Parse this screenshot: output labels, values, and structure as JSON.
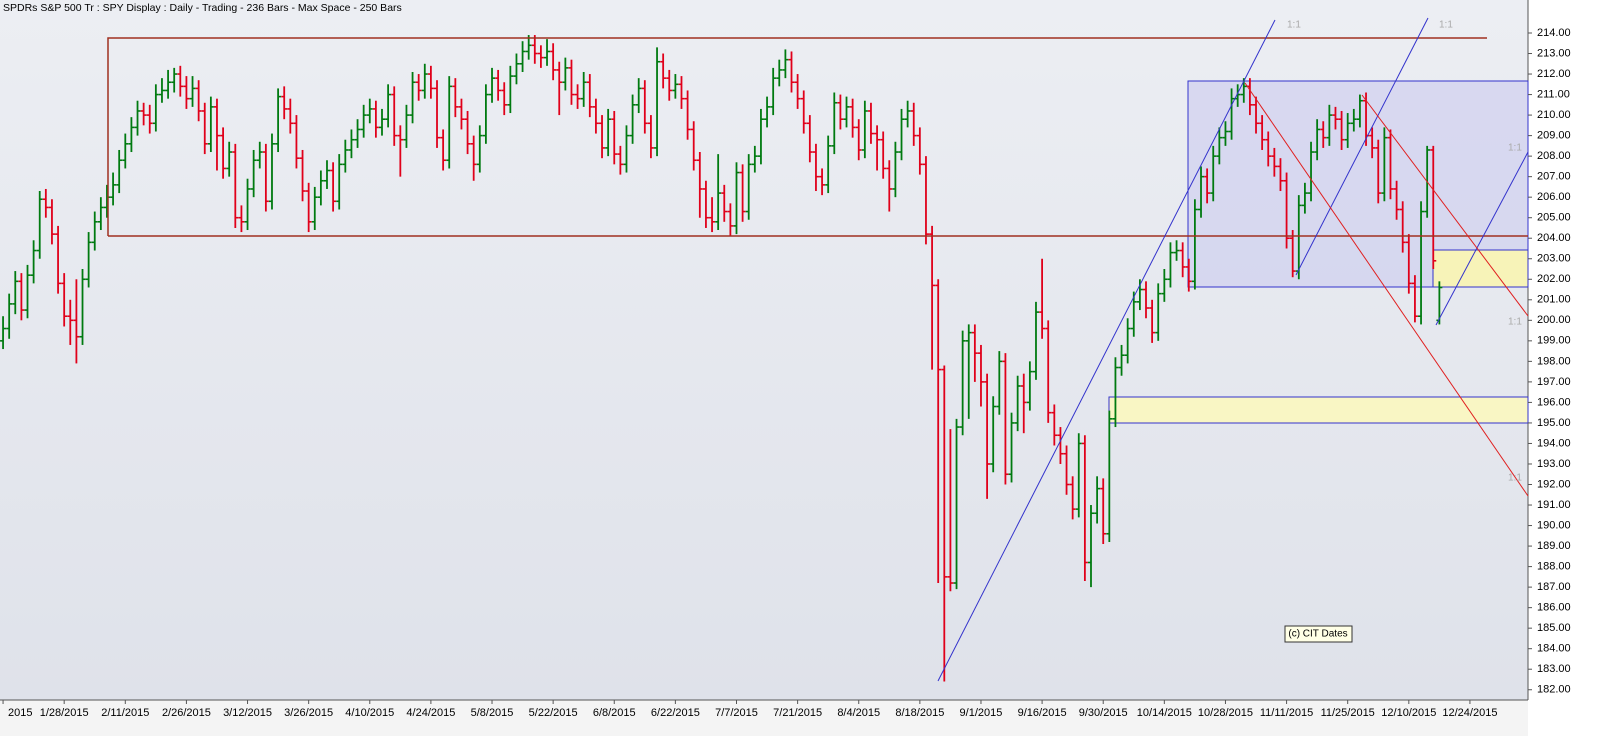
{
  "chart_data": {
    "type": "ohlc",
    "title": "SPDRs S&P 500 Tr : SPY Display :  Daily  - Trading - 236 Bars -  Max Space - 250 Bars",
    "up_color": "#007a10",
    "down_color": "#e0001a",
    "xlim": [
      -0.5,
      249.5
    ],
    "xticks": [
      {
        "value": 0,
        "label": "2015"
      },
      {
        "value": 10,
        "label": "1/28/2015"
      },
      {
        "value": 20,
        "label": "2/11/2015"
      },
      {
        "value": 30,
        "label": "2/26/2015"
      },
      {
        "value": 40,
        "label": "3/12/2015"
      },
      {
        "value": 50,
        "label": "3/26/2015"
      },
      {
        "value": 60,
        "label": "4/10/2015"
      },
      {
        "value": 70,
        "label": "4/24/2015"
      },
      {
        "value": 80,
        "label": "5/8/2015"
      },
      {
        "value": 90,
        "label": "5/22/2015"
      },
      {
        "value": 100,
        "label": "6/8/2015"
      },
      {
        "value": 110,
        "label": "6/22/2015"
      },
      {
        "value": 120,
        "label": "7/7/2015"
      },
      {
        "value": 130,
        "label": "7/21/2015"
      },
      {
        "value": 140,
        "label": "8/4/2015"
      },
      {
        "value": 150,
        "label": "8/18/2015"
      },
      {
        "value": 160,
        "label": "9/1/2015"
      },
      {
        "value": 170,
        "label": "9/16/2015"
      },
      {
        "value": 180,
        "label": "9/30/2015"
      },
      {
        "value": 190,
        "label": "10/14/2015"
      },
      {
        "value": 200,
        "label": "10/28/2015"
      },
      {
        "value": 210,
        "label": "11/11/2015"
      },
      {
        "value": 220,
        "label": "11/25/2015"
      },
      {
        "value": 230,
        "label": "12/10/2015"
      },
      {
        "value": 240,
        "label": "12/24/2015"
      }
    ],
    "ylim": [
      181.5,
      214.75
    ],
    "yticks": [
      {
        "value": 182,
        "label": "182.00"
      },
      {
        "value": 183,
        "label": "183.00"
      },
      {
        "value": 184,
        "label": "184.00"
      },
      {
        "value": 185,
        "label": "185.00"
      },
      {
        "value": 186,
        "label": "186.00"
      },
      {
        "value": 187,
        "label": "187.00"
      },
      {
        "value": 188,
        "label": "188.00"
      },
      {
        "value": 189,
        "label": "189.00"
      },
      {
        "value": 190,
        "label": "190.00"
      },
      {
        "value": 191,
        "label": "191.00"
      },
      {
        "value": 192,
        "label": "192.00"
      },
      {
        "value": 193,
        "label": "193.00"
      },
      {
        "value": 194,
        "label": "194.00"
      },
      {
        "value": 195,
        "label": "195.00"
      },
      {
        "value": 196,
        "label": "196.00"
      },
      {
        "value": 197,
        "label": "197.00"
      },
      {
        "value": 198,
        "label": "198.00"
      },
      {
        "value": 199,
        "label": "199.00"
      },
      {
        "value": 200,
        "label": "200.00"
      },
      {
        "value": 201,
        "label": "201.00"
      },
      {
        "value": 202,
        "label": "202.00"
      },
      {
        "value": 203,
        "label": "203.00"
      },
      {
        "value": 204,
        "label": "204.00"
      },
      {
        "value": 205,
        "label": "205.00"
      },
      {
        "value": 206,
        "label": "206.00"
      },
      {
        "value": 207,
        "label": "207.00"
      },
      {
        "value": 208,
        "label": "208.00"
      },
      {
        "value": 209,
        "label": "209.00"
      },
      {
        "value": 210,
        "label": "210.00"
      },
      {
        "value": 211,
        "label": "211.00"
      },
      {
        "value": 212,
        "label": "212.00"
      },
      {
        "value": 213,
        "label": "213.00"
      },
      {
        "value": 214,
        "label": "214.00"
      }
    ],
    "open": [
      199.0,
      199.6,
      200.8,
      201.9,
      200.5,
      202.2,
      203.4,
      205.9,
      205.5,
      204.2,
      201.8,
      200.2,
      200.0,
      199.2,
      202.0,
      203.8,
      204.8,
      205.5,
      206.0,
      206.6,
      207.8,
      208.6,
      209.4,
      210.2,
      210.0,
      209.6,
      211.0,
      211.2,
      211.6,
      212.0,
      211.4,
      210.8,
      211.3,
      210.2,
      208.6,
      210.4,
      209.0,
      207.4,
      208.2,
      205.0,
      204.8,
      206.4,
      207.8,
      208.2,
      205.8,
      208.6,
      210.9,
      210.3,
      209.6,
      207.9,
      206.3,
      204.8,
      206.0,
      206.8,
      207.3,
      205.8,
      207.6,
      208.3,
      208.8,
      209.3,
      210.0,
      210.3,
      209.4,
      209.8,
      211.0,
      209.0,
      208.8,
      210.0,
      211.6,
      211.2,
      212.0,
      211.3,
      208.9,
      207.8,
      211.4,
      210.4,
      209.8,
      208.6,
      207.6,
      209.0,
      211.0,
      211.8,
      211.2,
      210.5,
      211.9,
      212.5,
      213.1,
      213.4,
      213.0,
      212.8,
      213.1,
      212.2,
      211.6,
      212.3,
      211.0,
      210.8,
      211.6,
      210.4,
      209.6,
      208.4,
      209.8,
      208.1,
      207.6,
      209.0,
      210.5,
      211.3,
      209.6,
      208.4,
      212.6,
      211.8,
      211.2,
      211.5,
      210.8,
      209.3,
      207.8,
      206.4,
      205.0,
      204.8,
      206.2,
      205.3,
      204.6,
      207.2,
      205.3,
      207.6,
      208.0,
      209.8,
      210.4,
      211.8,
      212.2,
      212.7,
      211.6,
      210.8,
      209.6,
      208.2,
      207.0,
      206.6,
      208.5,
      210.6,
      209.8,
      210.4,
      209.4,
      208.3,
      210.2,
      209.1,
      208.8,
      207.4,
      206.4,
      208.2,
      209.8,
      210.2,
      209.0,
      207.6,
      204.2,
      201.7,
      197.6,
      187.5,
      187.2,
      194.8,
      199.0,
      199.4,
      198.4,
      197.0,
      193.0,
      195.8,
      198.0,
      192.5,
      195.0,
      196.8,
      196.0,
      197.5,
      200.4,
      199.6,
      195.5,
      194.4,
      193.5,
      192.0,
      190.8,
      194.0,
      188.2,
      190.6,
      191.8,
      189.6,
      195.2,
      197.7,
      198.3,
      199.6,
      200.9,
      201.5,
      200.6,
      199.4,
      201.3,
      202.0,
      203.3,
      203.4,
      202.6,
      201.9,
      205.4,
      207.0,
      206.2,
      208.0,
      208.9,
      209.2,
      210.8,
      211.0,
      211.4,
      210.5,
      209.6,
      208.8,
      208.0,
      207.5,
      206.8,
      204.0,
      202.4,
      205.6,
      206.2,
      208.2,
      209.3,
      208.9,
      210.0,
      209.8,
      208.8,
      209.6,
      209.8,
      210.7,
      209.0,
      208.4,
      206.2,
      208.9,
      206.4,
      205.4,
      203.8,
      201.8,
      200.2,
      205.3,
      208.3,
      200.0
    ],
    "high": [
      200.2,
      201.3,
      202.4,
      202.3,
      202.7,
      203.9,
      206.3,
      206.4,
      205.9,
      204.6,
      202.3,
      201.0,
      202.0,
      202.5,
      204.3,
      205.3,
      206.0,
      206.6,
      207.2,
      208.3,
      209.1,
      209.9,
      210.7,
      210.6,
      210.5,
      211.5,
      211.8,
      212.2,
      212.3,
      212.4,
      211.9,
      211.9,
      211.7,
      210.6,
      210.9,
      210.8,
      209.4,
      208.7,
      208.6,
      205.6,
      206.9,
      208.3,
      208.7,
      208.6,
      209.1,
      211.3,
      211.4,
      210.8,
      210.0,
      208.3,
      206.7,
      206.5,
      207.3,
      207.8,
      207.7,
      208.1,
      208.8,
      209.3,
      209.8,
      210.5,
      210.8,
      210.7,
      210.3,
      211.5,
      211.4,
      209.5,
      210.5,
      212.1,
      212.0,
      212.5,
      212.4,
      211.7,
      209.3,
      211.9,
      211.8,
      210.8,
      210.2,
      209.0,
      209.5,
      211.5,
      212.3,
      212.2,
      211.6,
      212.4,
      213.0,
      213.6,
      213.9,
      213.9,
      213.4,
      213.7,
      213.5,
      212.6,
      212.8,
      212.7,
      211.5,
      212.1,
      212.0,
      210.8,
      210.0,
      210.3,
      210.2,
      208.5,
      209.5,
      211.0,
      211.8,
      211.7,
      210.0,
      213.3,
      213.0,
      212.2,
      212.0,
      211.9,
      211.2,
      209.7,
      208.2,
      206.8,
      206.0,
      208.1,
      206.6,
      205.7,
      207.7,
      207.6,
      208.1,
      208.5,
      210.3,
      210.9,
      212.3,
      212.7,
      213.2,
      213.1,
      212.0,
      211.2,
      210.0,
      208.6,
      207.4,
      209.0,
      211.1,
      211.0,
      210.9,
      210.8,
      209.8,
      210.7,
      210.6,
      209.5,
      209.2,
      207.8,
      208.7,
      210.3,
      210.7,
      210.6,
      209.4,
      208.0,
      204.6,
      202.0,
      197.8,
      194.7,
      195.2,
      199.5,
      199.8,
      199.8,
      198.8,
      197.4,
      196.3,
      198.5,
      198.4,
      195.5,
      197.3,
      197.4,
      198.0,
      200.9,
      203.0,
      200.0,
      195.9,
      194.8,
      193.9,
      192.4,
      194.5,
      194.4,
      191.0,
      192.4,
      192.3,
      195.6,
      198.2,
      198.8,
      200.1,
      201.4,
      202.0,
      201.9,
      201.0,
      201.8,
      202.5,
      203.8,
      203.9,
      203.8,
      203.0,
      205.9,
      207.5,
      207.4,
      208.5,
      209.4,
      209.7,
      211.3,
      211.5,
      211.8,
      211.8,
      210.9,
      210.0,
      209.2,
      208.4,
      207.9,
      207.2,
      204.4,
      206.1,
      206.7,
      208.7,
      209.8,
      209.7,
      210.5,
      210.4,
      210.2,
      210.1,
      210.3,
      211.0,
      211.1,
      209.4,
      208.8,
      209.4,
      209.3,
      206.8,
      205.8,
      204.2,
      202.2,
      205.8,
      208.5,
      208.5,
      201.9
    ],
    "low": [
      198.6,
      199.1,
      200.3,
      200.0,
      200.1,
      201.8,
      203.0,
      205.0,
      203.7,
      201.3,
      199.7,
      198.8,
      197.9,
      198.8,
      201.6,
      203.4,
      204.4,
      205.0,
      205.6,
      206.2,
      207.4,
      208.2,
      209.0,
      209.5,
      209.1,
      209.2,
      210.6,
      210.8,
      211.1,
      210.9,
      210.3,
      210.4,
      209.7,
      208.1,
      208.2,
      207.3,
      206.9,
      207.0,
      204.5,
      204.3,
      204.4,
      206.0,
      207.4,
      205.3,
      205.4,
      208.2,
      209.8,
      209.1,
      207.4,
      205.8,
      204.3,
      204.4,
      205.6,
      206.4,
      205.3,
      205.4,
      207.2,
      207.9,
      208.4,
      208.9,
      209.6,
      208.9,
      209.0,
      209.4,
      208.5,
      207.0,
      208.4,
      209.6,
      210.7,
      210.8,
      210.8,
      208.4,
      207.3,
      207.4,
      209.9,
      209.3,
      208.1,
      206.8,
      207.2,
      208.6,
      210.6,
      210.7,
      210.0,
      210.1,
      211.5,
      212.1,
      212.7,
      212.5,
      212.3,
      212.4,
      211.7,
      210.0,
      211.2,
      210.5,
      210.3,
      210.4,
      209.9,
      209.1,
      207.9,
      208.0,
      207.6,
      207.1,
      207.2,
      208.6,
      210.1,
      209.1,
      207.9,
      208.0,
      211.3,
      210.7,
      210.8,
      210.3,
      208.8,
      207.3,
      205.0,
      204.5,
      204.3,
      204.4,
      204.8,
      204.1,
      204.2,
      204.8,
      204.9,
      207.2,
      207.6,
      209.4,
      210.0,
      211.4,
      211.8,
      211.1,
      210.3,
      209.1,
      207.7,
      206.3,
      206.1,
      206.2,
      208.1,
      209.3,
      209.4,
      208.9,
      207.8,
      207.9,
      208.6,
      207.3,
      206.9,
      205.3,
      206.0,
      207.8,
      209.4,
      208.5,
      207.1,
      203.7,
      197.6,
      187.2,
      182.4,
      186.8,
      186.9,
      194.4,
      195.2,
      197.0,
      195.8,
      191.3,
      192.6,
      195.4,
      192.0,
      192.1,
      194.6,
      194.5,
      195.6,
      197.1,
      199.1,
      195.0,
      193.9,
      193.0,
      191.5,
      190.3,
      190.4,
      187.3,
      187.0,
      190.1,
      189.1,
      189.2,
      194.8,
      197.3,
      197.9,
      199.2,
      200.5,
      200.1,
      198.9,
      199.0,
      200.9,
      201.6,
      202.9,
      202.1,
      201.4,
      201.5,
      205.0,
      205.7,
      205.8,
      207.6,
      208.5,
      208.8,
      210.4,
      210.6,
      210.0,
      209.1,
      208.3,
      207.5,
      207.0,
      206.3,
      203.5,
      202.1,
      202.0,
      205.2,
      205.8,
      207.8,
      208.4,
      208.5,
      209.3,
      208.3,
      208.4,
      209.2,
      209.4,
      208.5,
      207.9,
      205.7,
      205.8,
      205.9,
      204.9,
      203.3,
      201.3,
      199.9,
      199.8,
      205.0,
      202.5,
      199.8
    ],
    "close": [
      199.6,
      200.8,
      201.9,
      200.5,
      202.2,
      203.4,
      205.9,
      205.5,
      204.2,
      201.8,
      200.2,
      200.0,
      199.2,
      202.0,
      203.8,
      204.8,
      205.5,
      206.0,
      206.6,
      207.8,
      208.6,
      209.4,
      210.2,
      210.0,
      209.6,
      211.0,
      211.2,
      211.6,
      212.0,
      211.4,
      210.8,
      211.3,
      210.2,
      208.6,
      210.4,
      209.0,
      207.4,
      208.2,
      205.0,
      204.8,
      206.4,
      207.8,
      208.2,
      205.8,
      208.6,
      210.9,
      210.3,
      209.6,
      207.9,
      206.3,
      204.8,
      206.0,
      206.8,
      207.3,
      205.8,
      207.6,
      208.3,
      208.8,
      209.3,
      210.0,
      210.3,
      209.4,
      209.8,
      211.0,
      209.0,
      208.8,
      210.0,
      211.6,
      211.2,
      212.0,
      211.3,
      208.9,
      207.8,
      211.4,
      210.4,
      209.8,
      208.6,
      207.6,
      209.0,
      211.0,
      211.8,
      211.2,
      210.5,
      211.9,
      212.5,
      213.1,
      213.4,
      213.0,
      212.8,
      213.1,
      212.2,
      211.6,
      212.3,
      211.0,
      210.8,
      211.6,
      210.4,
      209.6,
      208.4,
      209.8,
      208.1,
      207.6,
      209.0,
      210.5,
      211.3,
      209.6,
      208.4,
      212.6,
      211.8,
      211.2,
      211.5,
      210.8,
      209.3,
      207.8,
      206.4,
      205.0,
      204.8,
      206.2,
      205.3,
      204.6,
      207.2,
      205.3,
      207.6,
      208.0,
      209.8,
      210.4,
      211.8,
      212.2,
      212.7,
      211.6,
      210.8,
      209.6,
      208.2,
      207.0,
      206.6,
      208.5,
      210.6,
      209.8,
      210.4,
      209.4,
      208.3,
      210.2,
      209.1,
      208.8,
      207.4,
      206.4,
      208.2,
      209.8,
      210.2,
      209.0,
      207.6,
      204.2,
      201.7,
      197.6,
      187.5,
      187.2,
      194.8,
      199.0,
      199.4,
      198.4,
      197.0,
      193.0,
      195.8,
      198.0,
      192.5,
      195.0,
      196.8,
      196.0,
      197.5,
      200.4,
      199.6,
      195.5,
      194.4,
      193.5,
      192.0,
      190.8,
      194.0,
      188.2,
      190.6,
      191.8,
      189.6,
      195.2,
      197.7,
      198.3,
      199.6,
      200.9,
      201.5,
      200.6,
      199.4,
      201.3,
      202.0,
      203.3,
      203.4,
      202.6,
      201.9,
      205.4,
      207.0,
      206.2,
      208.0,
      208.9,
      209.2,
      210.8,
      211.0,
      211.4,
      210.5,
      209.6,
      208.8,
      208.0,
      207.5,
      206.8,
      204.0,
      202.4,
      205.6,
      206.2,
      208.2,
      209.3,
      208.9,
      210.0,
      209.8,
      208.8,
      209.6,
      209.8,
      210.7,
      209.0,
      208.4,
      206.2,
      208.9,
      206.4,
      205.4,
      203.8,
      201.8,
      200.2,
      205.3,
      208.3,
      202.9,
      201.6
    ],
    "annotations": [
      "1:1",
      "1:1",
      "1:1",
      "1:1",
      "1:1"
    ],
    "watermark": "(c) CIT Dates"
  }
}
